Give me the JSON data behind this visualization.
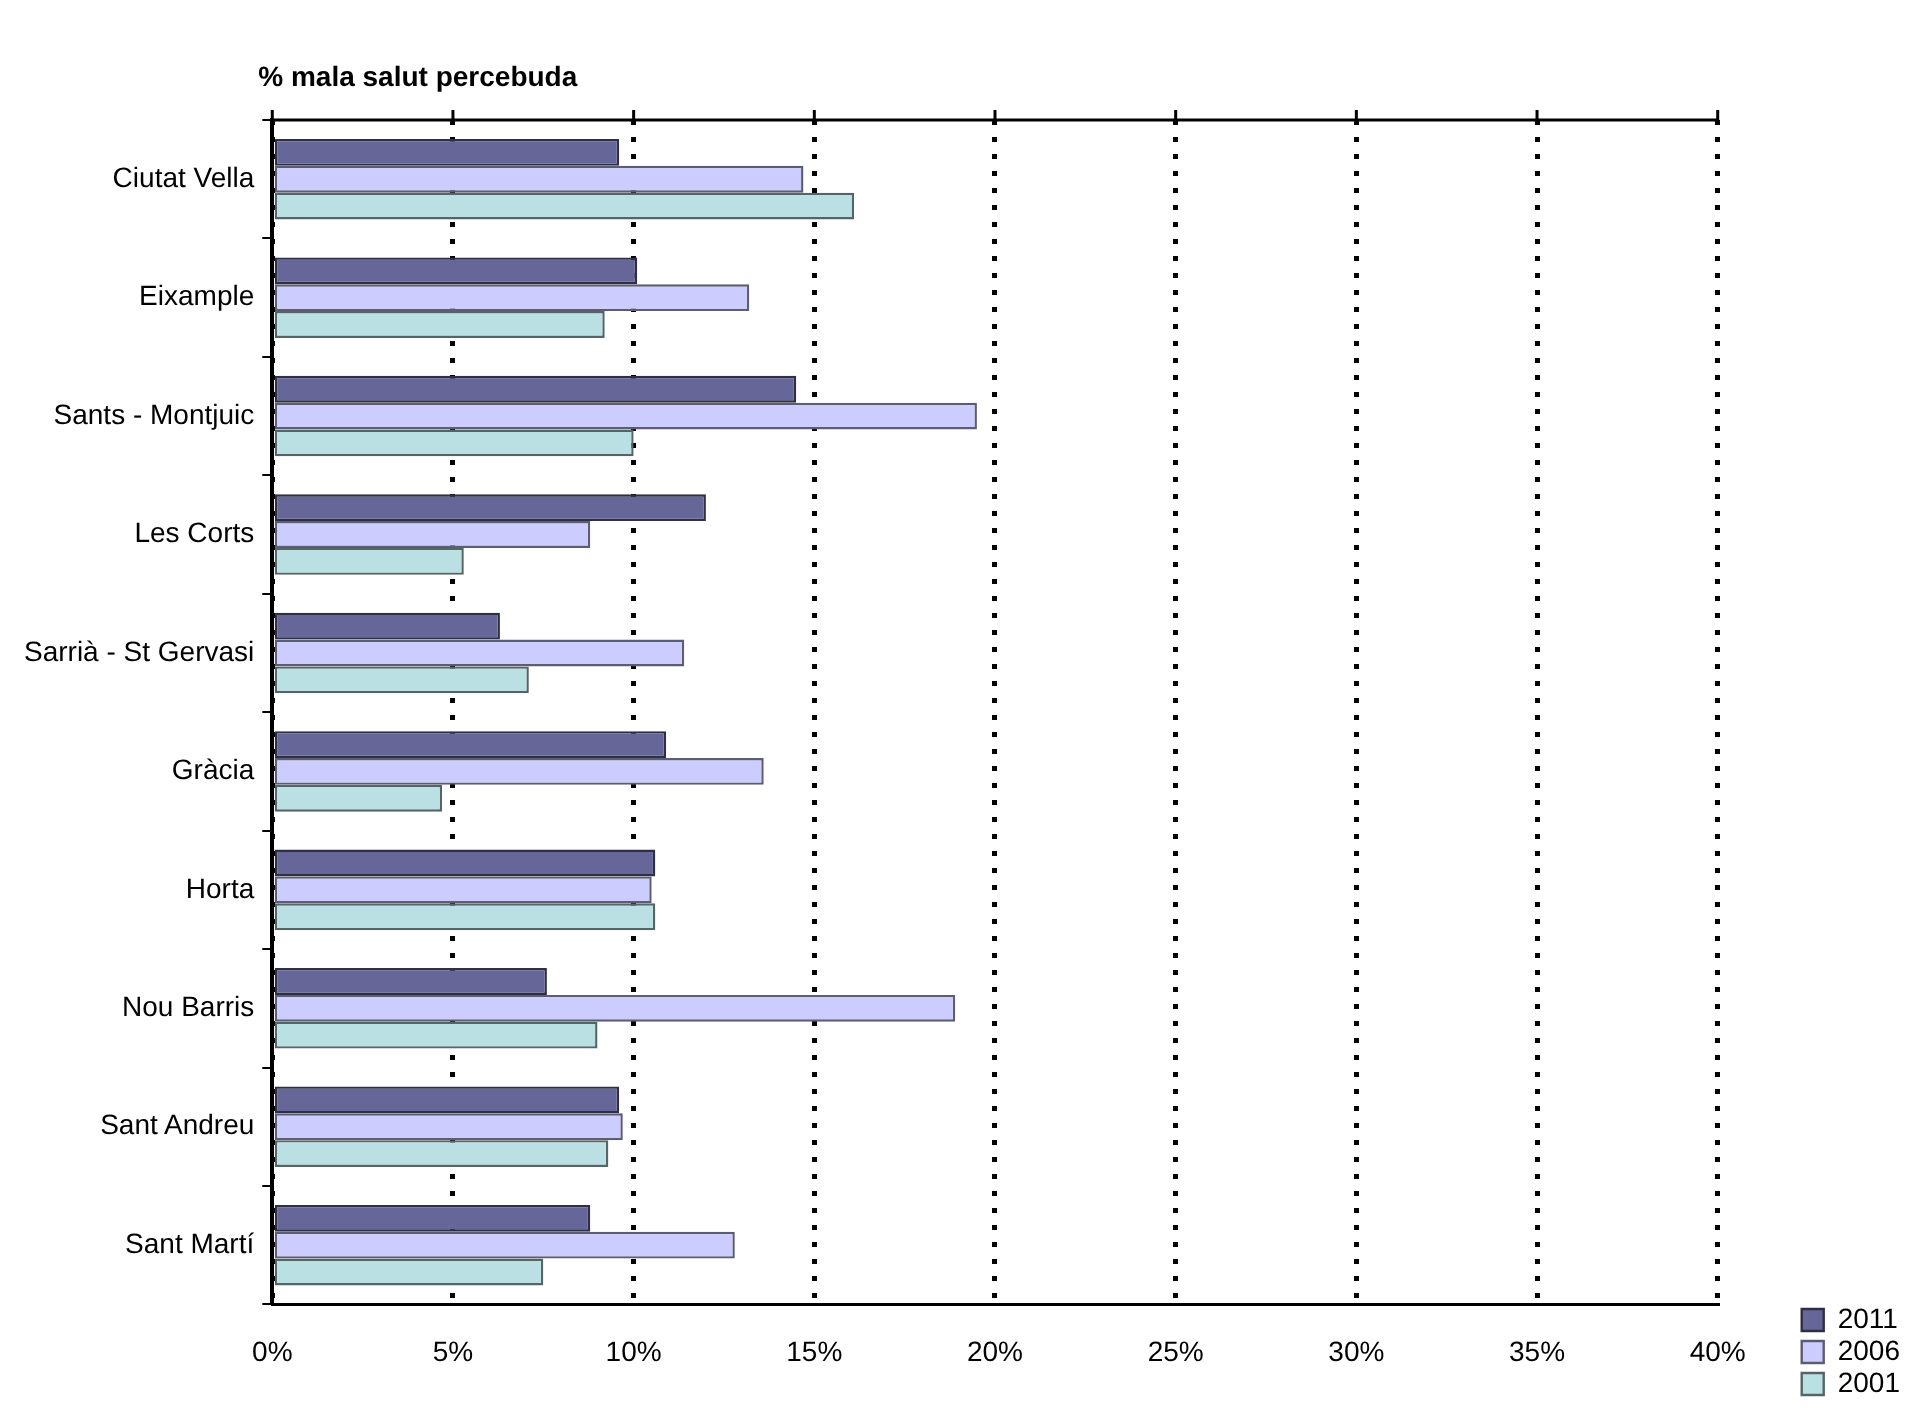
{
  "chart_data": {
    "type": "bar",
    "orientation": "horizontal",
    "title": "% mala salut percebuda",
    "categories": [
      "Ciutat Vella",
      "Eixample",
      "Sants - Montjuic",
      "Les Corts",
      "Sarrià - St Gervasi",
      "Gràcia",
      "Horta",
      "Nou Barris",
      "Sant Andreu",
      "Sant Martí"
    ],
    "series": [
      {
        "name": "2011",
        "color": "#666699",
        "values": [
          9.6,
          10.1,
          14.5,
          12.0,
          6.3,
          10.9,
          10.6,
          7.6,
          9.6,
          8.8
        ]
      },
      {
        "name": "2006",
        "color": "#ccccff",
        "values": [
          14.7,
          13.2,
          19.5,
          8.8,
          11.4,
          13.6,
          10.5,
          18.9,
          9.7,
          12.8
        ]
      },
      {
        "name": "2001",
        "color": "#bbe0e3",
        "values": [
          16.1,
          9.2,
          10.0,
          5.3,
          7.1,
          4.7,
          10.6,
          9.0,
          9.3,
          7.5
        ]
      }
    ],
    "xlim": [
      0,
      40
    ],
    "xticks": [
      {
        "value": 0,
        "label": "0%"
      },
      {
        "value": 5,
        "label": "5%"
      },
      {
        "value": 10,
        "label": "10%"
      },
      {
        "value": 15,
        "label": "15%"
      },
      {
        "value": 20,
        "label": "20%"
      },
      {
        "value": 25,
        "label": "25%"
      },
      {
        "value": 30,
        "label": "30%"
      },
      {
        "value": 35,
        "label": "35%"
      },
      {
        "value": 40,
        "label": "40%"
      }
    ],
    "grid": "x",
    "legend": "bottom right"
  }
}
